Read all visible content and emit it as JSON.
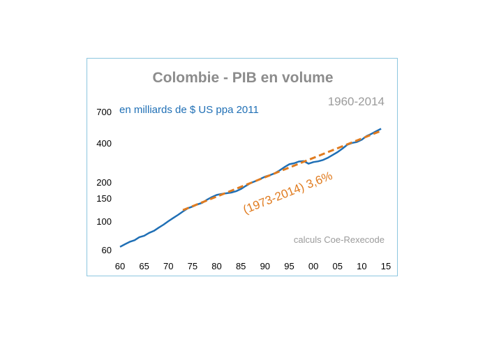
{
  "chart_data": {
    "type": "line",
    "title": "Colombie - PIB en volume",
    "period_label": "1960-2014",
    "units_label": "en milliards de $ US ppa 2011",
    "source_label": "calculs Coe-Rexecode",
    "trend_label": "(1973-2014) 3,6%",
    "y_scale": "log",
    "ylim": [
      60,
      700
    ],
    "xlim": [
      1960,
      2015
    ],
    "x_ticks": [
      {
        "value": 1960,
        "label": "60"
      },
      {
        "value": 1965,
        "label": "65"
      },
      {
        "value": 1970,
        "label": "70"
      },
      {
        "value": 1975,
        "label": "75"
      },
      {
        "value": 1980,
        "label": "80"
      },
      {
        "value": 1985,
        "label": "85"
      },
      {
        "value": 1990,
        "label": "90"
      },
      {
        "value": 1995,
        "label": "95"
      },
      {
        "value": 2000,
        "label": "00"
      },
      {
        "value": 2005,
        "label": "05"
      },
      {
        "value": 2010,
        "label": "10"
      },
      {
        "value": 2015,
        "label": "15"
      }
    ],
    "y_ticks": [
      {
        "value": 60,
        "label": "60"
      },
      {
        "value": 100,
        "label": "100"
      },
      {
        "value": 150,
        "label": "150"
      },
      {
        "value": 200,
        "label": "200"
      },
      {
        "value": 400,
        "label": "400"
      },
      {
        "value": 700,
        "label": "700"
      }
    ],
    "series": [
      {
        "name": "PIB en volume",
        "color": "#1f6fb5",
        "x": [
          1960,
          1961,
          1962,
          1963,
          1964,
          1965,
          1966,
          1967,
          1968,
          1969,
          1970,
          1971,
          1972,
          1973,
          1974,
          1975,
          1976,
          1977,
          1978,
          1979,
          1980,
          1981,
          1982,
          1983,
          1984,
          1985,
          1986,
          1987,
          1988,
          1989,
          1990,
          1991,
          1992,
          1993,
          1994,
          1995,
          1996,
          1997,
          1998,
          1999,
          2000,
          2001,
          2002,
          2003,
          2004,
          2005,
          2006,
          2007,
          2008,
          2009,
          2010,
          2011,
          2012,
          2013,
          2014
        ],
        "values": [
          64,
          67,
          70,
          72,
          76,
          78,
          82,
          85,
          90,
          95,
          101,
          107,
          113,
          120,
          127,
          131,
          136,
          140,
          148,
          155,
          161,
          164,
          166,
          168,
          172,
          179,
          189,
          199,
          206,
          214,
          223,
          229,
          237,
          249,
          264,
          278,
          283,
          292,
          294,
          281,
          289,
          293,
          300,
          312,
          328,
          345,
          367,
          393,
          406,
          413,
          430,
          459,
          477,
          500,
          523
        ]
      },
      {
        "name": "tendance (1973-2014) 3,6%",
        "color": "#e07b1f",
        "dashed": true,
        "x": [
          1973,
          2014
        ],
        "values": [
          123,
          504
        ]
      }
    ]
  }
}
